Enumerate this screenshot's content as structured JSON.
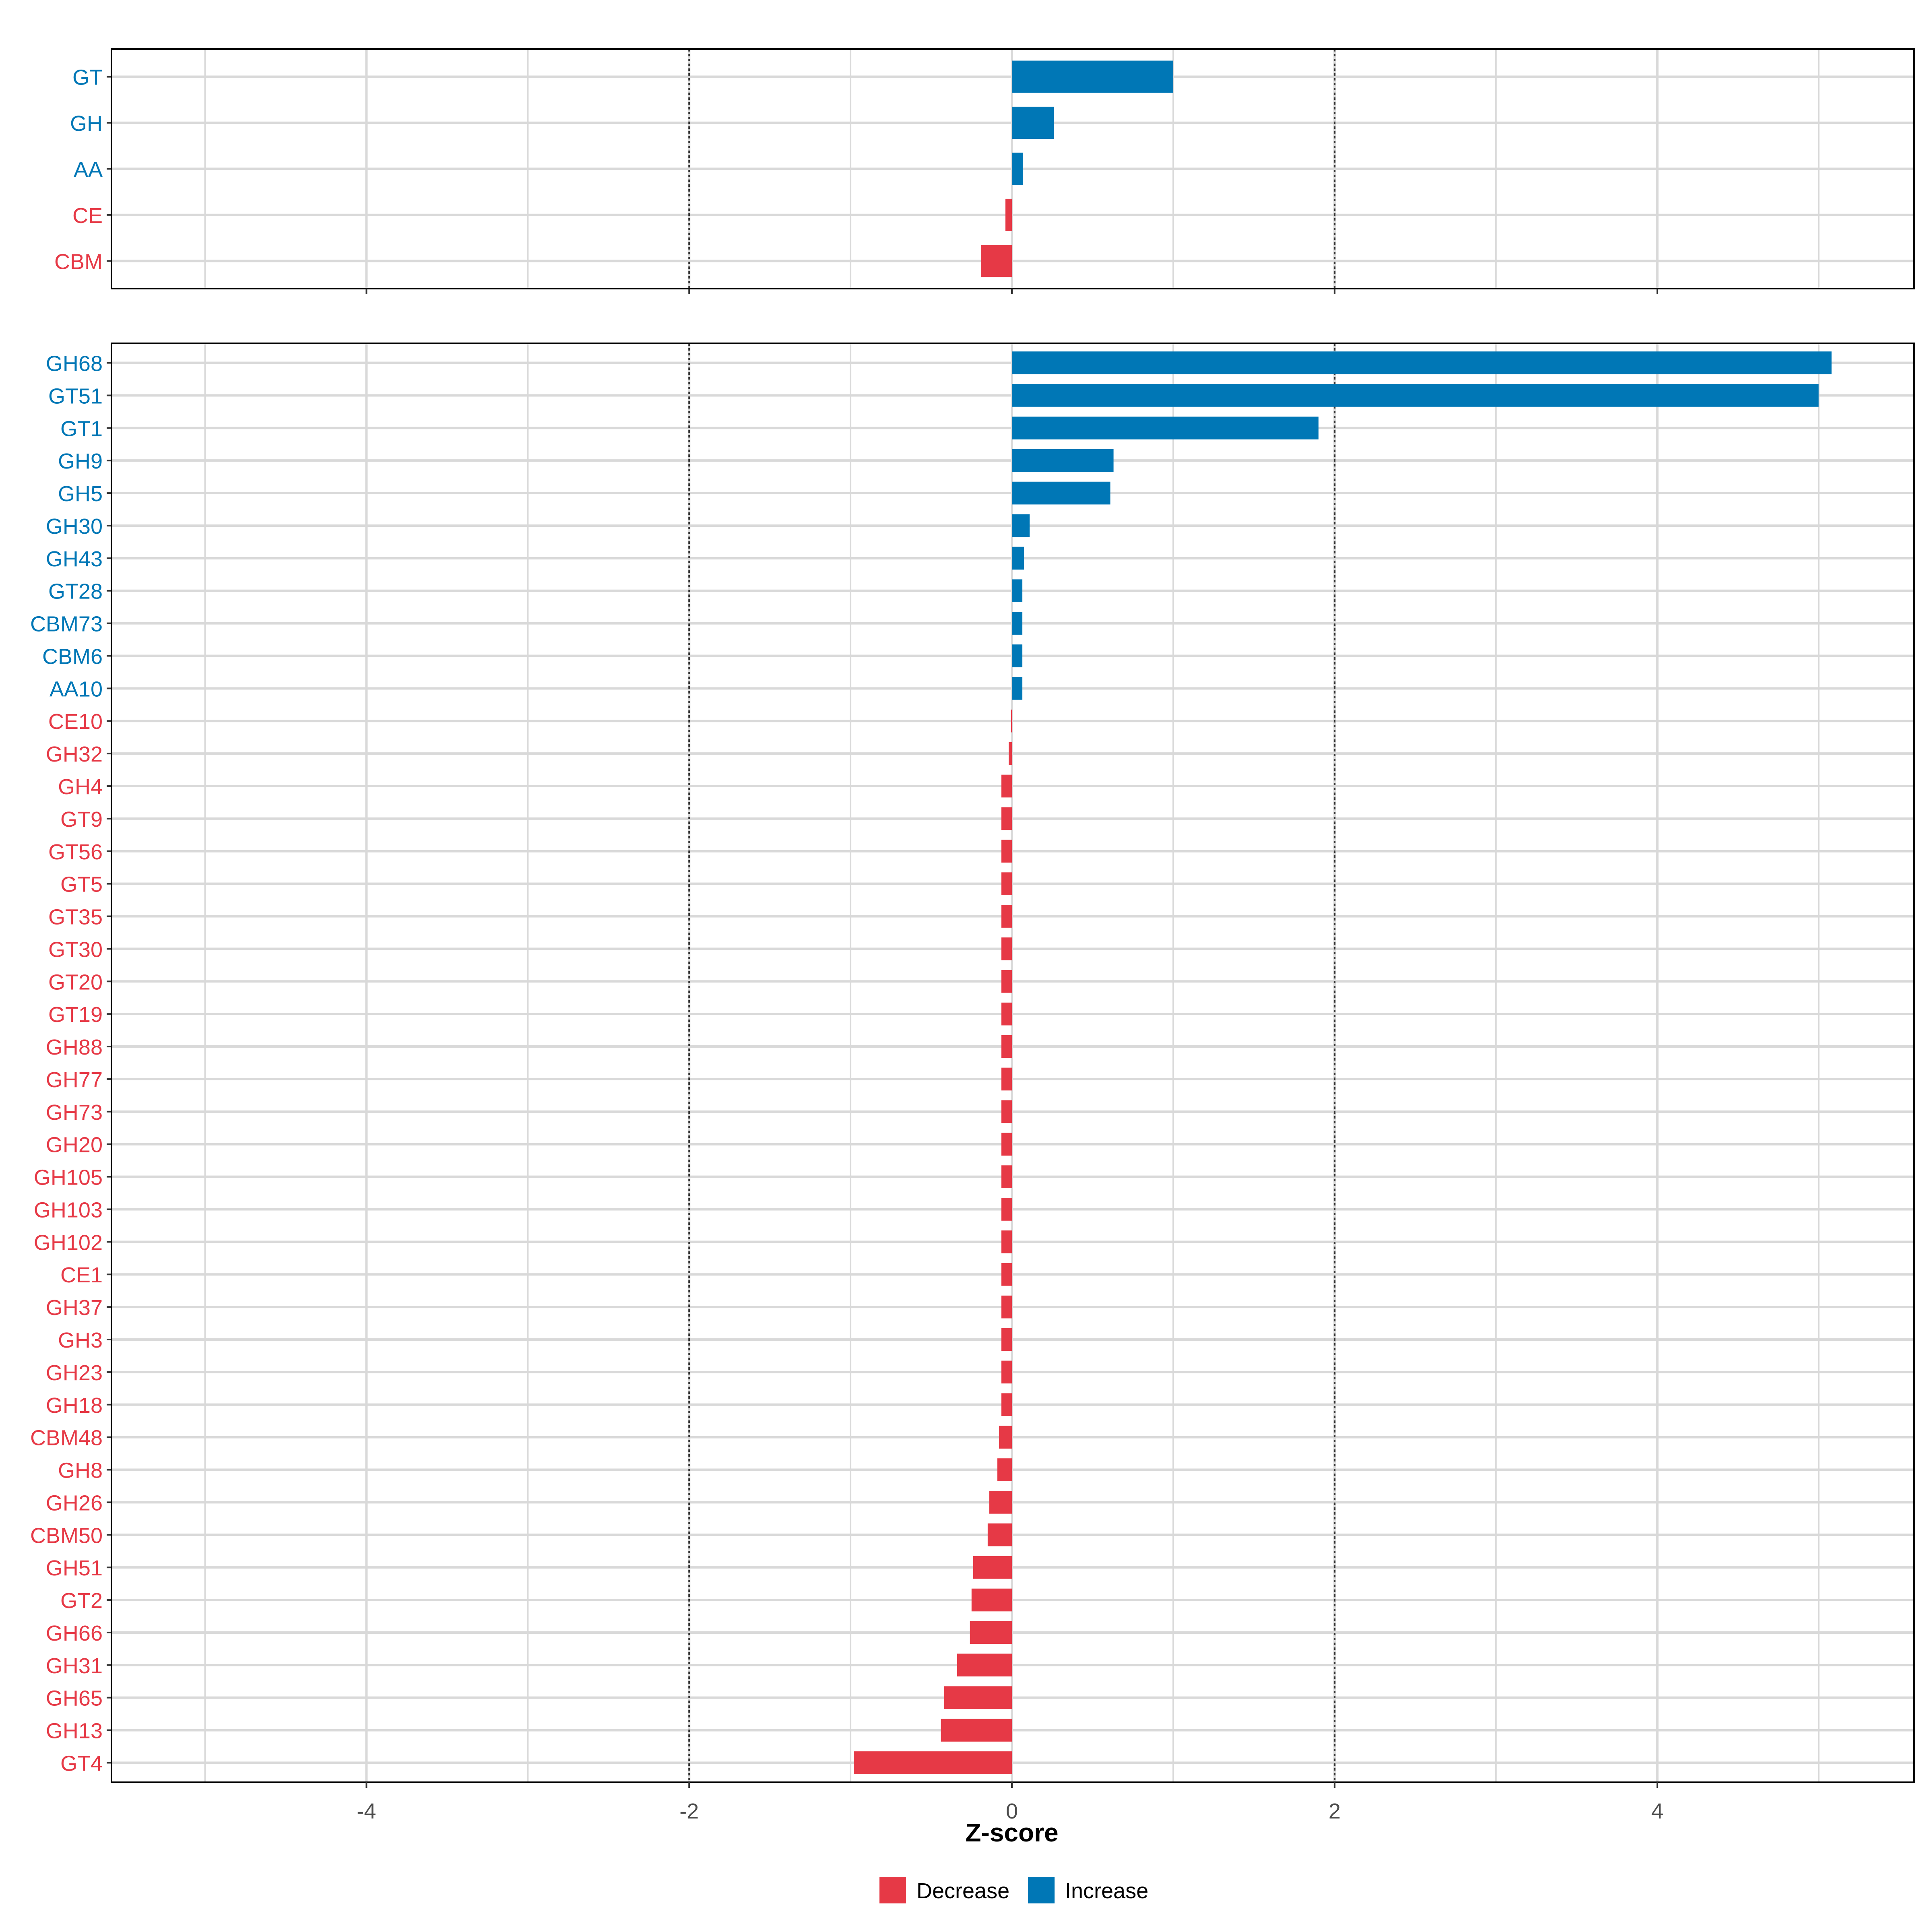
{
  "chart_data": [
    {
      "type": "bar",
      "orientation": "horizontal",
      "panel": "top",
      "categories": [
        "GT",
        "GH",
        "AA",
        "CE",
        "CBM"
      ],
      "values": [
        1.0,
        0.26,
        0.07,
        -0.04,
        -0.19
      ],
      "xlim": [
        -5.58,
        5.59
      ],
      "grid": true
    },
    {
      "type": "bar",
      "orientation": "horizontal",
      "panel": "bottom",
      "categories": [
        "GH68",
        "GT51",
        "GT1",
        "GH9",
        "GH5",
        "GH30",
        "GH43",
        "GT28",
        "CBM73",
        "CBM6",
        "AA10",
        "CE10",
        "GH32",
        "GH4",
        "GT9",
        "GT56",
        "GT5",
        "GT35",
        "GT30",
        "GT20",
        "GT19",
        "GH88",
        "GH77",
        "GH73",
        "GH20",
        "GH105",
        "GH103",
        "GH102",
        "CE1",
        "GH37",
        "GH3",
        "GH23",
        "GH18",
        "CBM48",
        "GH8",
        "GH26",
        "CBM50",
        "GH51",
        "GT2",
        "GH66",
        "GH31",
        "GH65",
        "GH13",
        "GT4"
      ],
      "values": [
        5.08,
        5.0,
        1.9,
        0.63,
        0.61,
        0.11,
        0.075,
        0.065,
        0.065,
        0.065,
        0.065,
        -0.005,
        -0.02,
        -0.065,
        -0.065,
        -0.065,
        -0.065,
        -0.065,
        -0.065,
        -0.065,
        -0.065,
        -0.065,
        -0.065,
        -0.065,
        -0.065,
        -0.065,
        -0.065,
        -0.065,
        -0.065,
        -0.065,
        -0.065,
        -0.065,
        -0.065,
        -0.08,
        -0.09,
        -0.14,
        -0.15,
        -0.24,
        -0.25,
        -0.26,
        -0.34,
        -0.42,
        -0.44,
        -0.98
      ],
      "xlim": [
        -5.58,
        5.59
      ],
      "grid": true,
      "xticks": [
        -4,
        -2,
        0,
        2,
        4
      ],
      "xtick_labels": [
        "-4",
        "-2",
        "0",
        "2",
        "4"
      ],
      "xlabel": "Z-score",
      "reference_lines": [
        -2,
        2
      ]
    }
  ],
  "legend": {
    "placement": "bottom",
    "items": [
      {
        "label": "Decrease",
        "color": "#E63946"
      },
      {
        "label": "Increase",
        "color": "#0077B6"
      }
    ]
  },
  "colors": {
    "increase": "#0077B6",
    "decrease": "#E63946",
    "grid": "#D9D9D9"
  }
}
